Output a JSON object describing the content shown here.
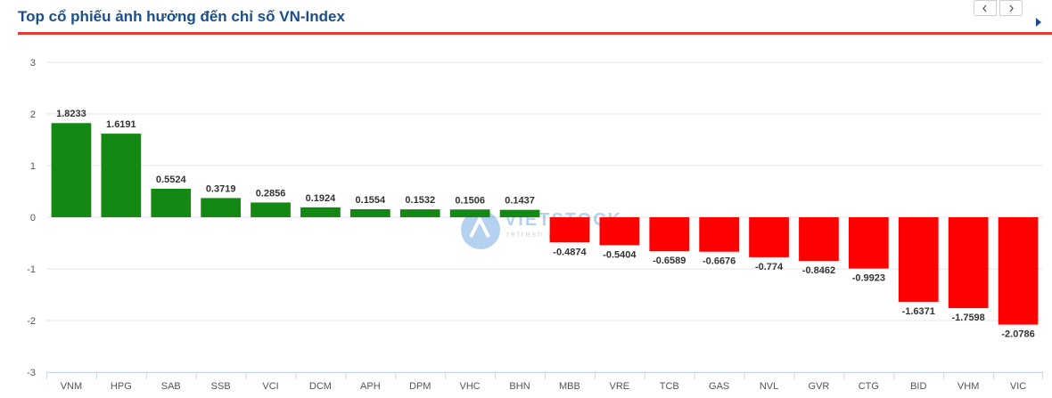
{
  "header": {
    "title": "Top cổ phiếu ảnh hưởng đến chỉ số VN-Index",
    "prev_icon": "chevron-left-icon",
    "next_icon": "chevron-right-icon",
    "expand_icon": "caret-right-icon"
  },
  "colors": {
    "positive": "#138913",
    "negative": "#ff0000",
    "title": "#1a4f8b",
    "rule": "#e53935"
  },
  "watermark": {
    "text": "VIETSTOCK",
    "subtext": "refresh your..."
  },
  "chart_data": {
    "type": "bar",
    "categories": [
      "VNM",
      "HPG",
      "SAB",
      "SSB",
      "VCI",
      "DCM",
      "APH",
      "DPM",
      "VHC",
      "BHN",
      "MBB",
      "VRE",
      "TCB",
      "GAS",
      "NVL",
      "GVR",
      "CTG",
      "BID",
      "VHM",
      "VIC"
    ],
    "values": [
      1.8233,
      1.6191,
      0.5524,
      0.3719,
      0.2856,
      0.1924,
      0.1554,
      0.1532,
      0.1506,
      0.1437,
      -0.4874,
      -0.5404,
      -0.6589,
      -0.6676,
      -0.774,
      -0.8462,
      -0.9923,
      -1.6371,
      -1.7598,
      -2.0786
    ],
    "value_labels": [
      "1.8233",
      "1.6191",
      "0.5524",
      "0.3719",
      "0.2856",
      "0.1924",
      "0.1554",
      "0.1532",
      "0.1506",
      "0.1437",
      "-0.4874",
      "-0.5404",
      "-0.6589",
      "-0.6676",
      "-0.774",
      "-0.8462",
      "-0.9923",
      "-1.6371",
      "-1.7598",
      "-2.0786"
    ],
    "ylim": [
      -3,
      3
    ],
    "yticks": [
      "3",
      "2",
      "1",
      "0",
      "-1",
      "-2",
      "-3"
    ],
    "grid": true
  }
}
